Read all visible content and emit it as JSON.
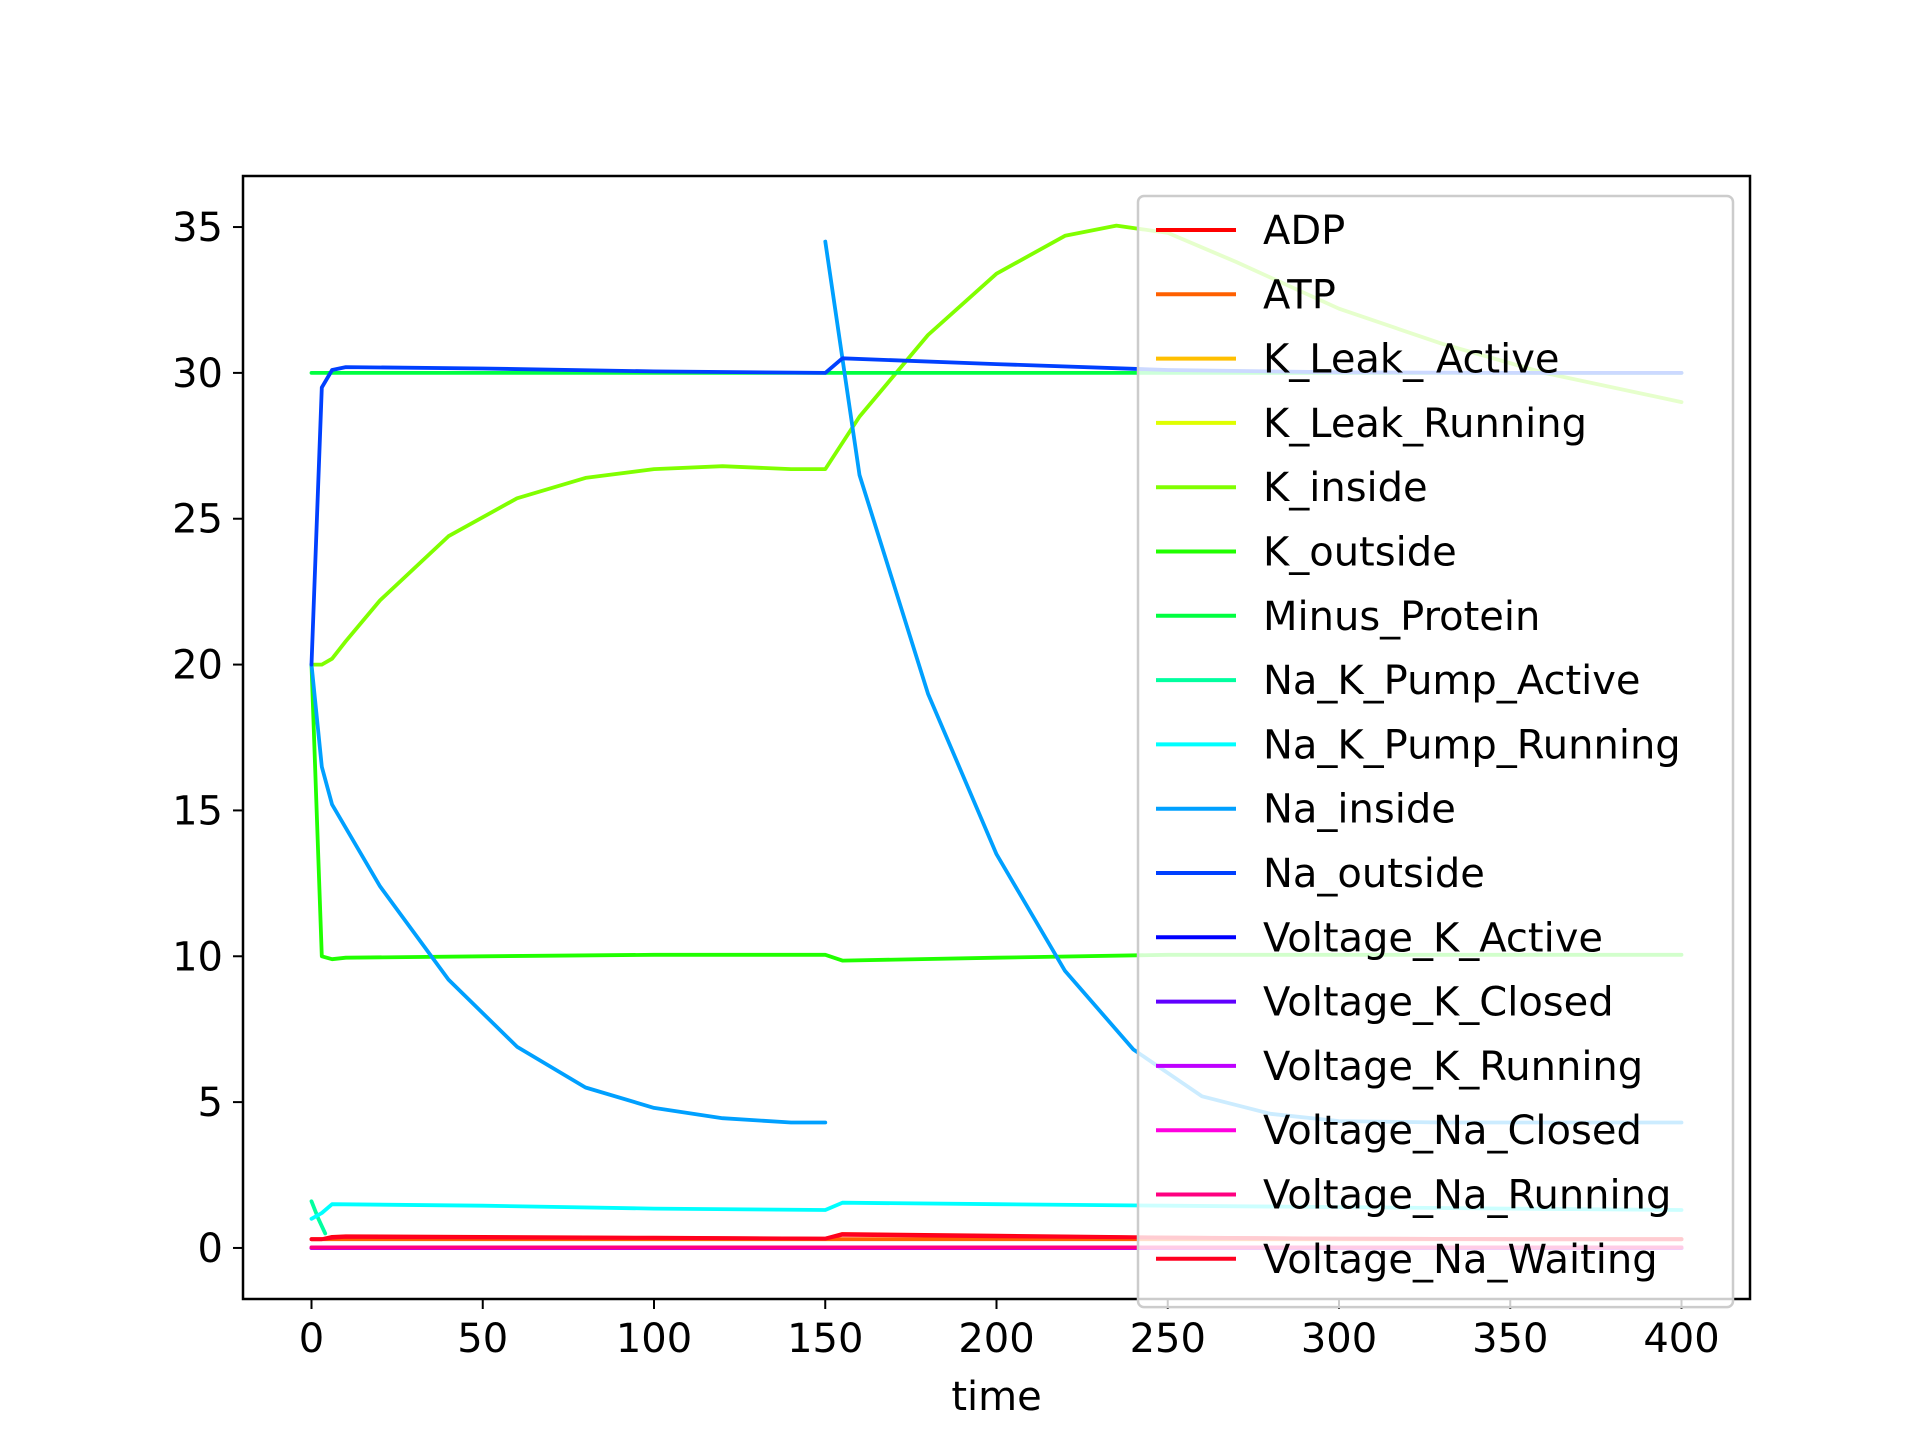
{
  "chart_data": {
    "type": "line",
    "title": "",
    "xlabel": "time",
    "ylabel": "",
    "xlim": [
      -20,
      420
    ],
    "ylim": [
      -1.75,
      36.75
    ],
    "xticks": [
      0,
      50,
      100,
      150,
      200,
      250,
      300,
      350,
      400
    ],
    "yticks": [
      0,
      5,
      10,
      15,
      20,
      25,
      30,
      35
    ],
    "grid": false,
    "legend_position": "upper right",
    "series": [
      {
        "name": "ADP",
        "color": "#ff0000",
        "x": [
          0,
          3,
          6,
          10,
          50,
          100,
          150,
          155,
          200,
          250,
          300,
          350,
          400
        ],
        "y": [
          0.3,
          0.3,
          0.38,
          0.4,
          0.38,
          0.35,
          0.32,
          0.48,
          0.42,
          0.36,
          0.32,
          0.3,
          0.3
        ]
      },
      {
        "name": "ATP",
        "color": "#ff6000",
        "x": [
          0,
          400
        ],
        "y": [
          0.3,
          0.3
        ]
      },
      {
        "name": "K_Leak_ Active",
        "color": "#ffbf00",
        "x": [
          0,
          400
        ],
        "y": [
          0.0,
          0.0
        ]
      },
      {
        "name": "K_Leak_Running",
        "color": "#dfff00",
        "x": [
          0,
          400
        ],
        "y": [
          0.0,
          0.0
        ]
      },
      {
        "name": "K_inside",
        "color": "#80ff00",
        "x": [
          0,
          3,
          6,
          10,
          20,
          40,
          60,
          80,
          100,
          120,
          140,
          150,
          160,
          180,
          200,
          220,
          235,
          250,
          270,
          300,
          330,
          360,
          400
        ],
        "y": [
          20,
          20,
          20.2,
          20.8,
          22.2,
          24.4,
          25.7,
          26.4,
          26.7,
          26.8,
          26.7,
          26.7,
          28.5,
          31.3,
          33.4,
          34.7,
          35.05,
          34.8,
          33.8,
          32.2,
          31.0,
          30.0,
          29.0
        ]
      },
      {
        "name": "K_outside",
        "color": "#20ff00",
        "x": [
          0,
          3,
          6,
          10,
          50,
          100,
          150,
          155,
          200,
          250,
          300,
          350,
          400
        ],
        "y": [
          20,
          10.0,
          9.9,
          9.95,
          10.0,
          10.05,
          10.05,
          9.85,
          9.95,
          10.05,
          10.05,
          10.05,
          10.05
        ]
      },
      {
        "name": "Minus_Protein",
        "color": "#00ff40",
        "x": [
          0,
          400
        ],
        "y": [
          30,
          30
        ]
      },
      {
        "name": "Na_K_Pump_Active",
        "color": "#00ff9f",
        "x": [
          0,
          2,
          4
        ],
        "y": [
          1.6,
          1.0,
          0.5
        ]
      },
      {
        "name": "Na_K_Pump_Running",
        "color": "#00ffff",
        "x": [
          0,
          3,
          6,
          50,
          100,
          150,
          155,
          200,
          250,
          300,
          350,
          400
        ],
        "y": [
          1.0,
          1.2,
          1.5,
          1.45,
          1.35,
          1.3,
          1.55,
          1.5,
          1.45,
          1.4,
          1.35,
          1.3
        ]
      },
      {
        "name": "Na_inside",
        "color": "#00a0ff",
        "x": [
          0,
          3,
          6,
          20,
          40,
          60,
          80,
          100,
          120,
          140,
          150
        ],
        "y": [
          20,
          16.5,
          15.2,
          12.4,
          9.2,
          6.9,
          5.5,
          4.8,
          4.45,
          4.3,
          4.3
        ]
      },
      {
        "name": "Na_inside",
        "color": "#00a0ff",
        "x": [
          150,
          160,
          180,
          200,
          220,
          240,
          260,
          280,
          300,
          330,
          360,
          400
        ],
        "y": [
          34.5,
          26.5,
          19.0,
          13.5,
          9.5,
          6.8,
          5.2,
          4.6,
          4.35,
          4.3,
          4.3,
          4.3
        ]
      },
      {
        "name": "Na_outside",
        "color": "#0040ff",
        "x": [
          0,
          3,
          6,
          10,
          50,
          100,
          150,
          155,
          200,
          250,
          300,
          350,
          400
        ],
        "y": [
          20,
          29.5,
          30.1,
          30.2,
          30.15,
          30.05,
          30.0,
          30.5,
          30.3,
          30.1,
          30.02,
          30.0,
          30.0
        ]
      },
      {
        "name": "Voltage_K_Active",
        "color": "#0000ff",
        "x": [
          0,
          400
        ],
        "y": [
          0.0,
          0.0
        ]
      },
      {
        "name": "Voltage_K_Closed",
        "color": "#6000ff",
        "x": [
          0,
          400
        ],
        "y": [
          0.0,
          0.0
        ]
      },
      {
        "name": "Voltage_K_Running",
        "color": "#bf00ff",
        "x": [
          0,
          400
        ],
        "y": [
          0.0,
          0.0
        ]
      },
      {
        "name": "Voltage_Na_Closed",
        "color": "#ff00df",
        "x": [
          0,
          400
        ],
        "y": [
          0.02,
          0.02
        ]
      },
      {
        "name": "Voltage_Na_Running",
        "color": "#ff0080",
        "x": [
          0,
          400
        ],
        "y": [
          0.02,
          0.02
        ]
      },
      {
        "name": "Voltage_Na_Waiting",
        "color": "#ff0020",
        "x": [
          0,
          3,
          6,
          10,
          50,
          100,
          150,
          155,
          200,
          250,
          300,
          350,
          400
        ],
        "y": [
          0.3,
          0.3,
          0.35,
          0.38,
          0.36,
          0.34,
          0.32,
          0.45,
          0.4,
          0.35,
          0.32,
          0.3,
          0.3
        ]
      }
    ],
    "legend": [
      {
        "name": "ADP",
        "color": "#ff0000"
      },
      {
        "name": "ATP",
        "color": "#ff6000"
      },
      {
        "name": "K_Leak_ Active",
        "color": "#ffbf00"
      },
      {
        "name": "K_Leak_Running",
        "color": "#dfff00"
      },
      {
        "name": "K_inside",
        "color": "#80ff00"
      },
      {
        "name": "K_outside",
        "color": "#20ff00"
      },
      {
        "name": "Minus_Protein",
        "color": "#00ff40"
      },
      {
        "name": "Na_K_Pump_Active",
        "color": "#00ff9f"
      },
      {
        "name": "Na_K_Pump_Running",
        "color": "#00ffff"
      },
      {
        "name": "Na_inside",
        "color": "#00a0ff"
      },
      {
        "name": "Na_outside",
        "color": "#0040ff"
      },
      {
        "name": "Voltage_K_Active",
        "color": "#0000ff"
      },
      {
        "name": "Voltage_K_Closed",
        "color": "#6000ff"
      },
      {
        "name": "Voltage_K_Running",
        "color": "#bf00ff"
      },
      {
        "name": "Voltage_Na_Closed",
        "color": "#ff00df"
      },
      {
        "name": "Voltage_Na_Running",
        "color": "#ff0080"
      },
      {
        "name": "Voltage_Na_Waiting",
        "color": "#ff0020"
      }
    ]
  }
}
